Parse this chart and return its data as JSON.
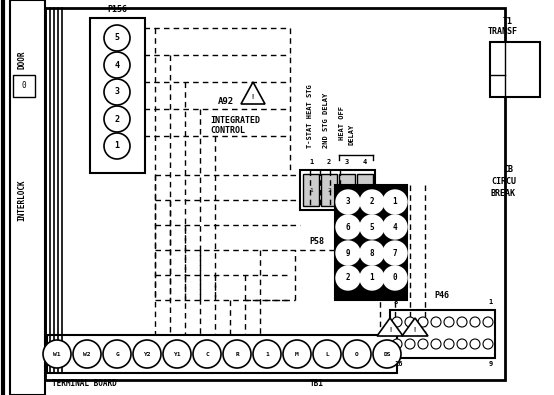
{
  "bg_color": "#ffffff",
  "line_color": "#000000",
  "p156_label": "P156",
  "p156_pins": [
    "5",
    "4",
    "3",
    "2",
    "1"
  ],
  "a92_label": "A92",
  "a92_sub": "INTEGRATED\nCONTROL",
  "tstat_label": "T-STAT HEAT STG",
  "second_stg_label": "2ND STG DELAY",
  "heat_off_label": "HEAT OFF",
  "delay_label": "DELAY",
  "p58_label": "P58",
  "p58_pins": [
    [
      "3",
      "2",
      "1"
    ],
    [
      "6",
      "5",
      "4"
    ],
    [
      "9",
      "8",
      "7"
    ],
    [
      "2",
      "1",
      "0"
    ]
  ],
  "p46_label": "P46",
  "terminal_labels": [
    "W1",
    "W2",
    "G",
    "Y2",
    "Y1",
    "C",
    "R",
    "1",
    "M",
    "L",
    "O",
    "DS"
  ],
  "tb1_label": "TB1",
  "terminal_board_label": "TERMINAL BOARD",
  "t1_label": "T1",
  "transf_label": "TRANSF",
  "cb_label": "CB",
  "circu_label": "CIRCU",
  "break_label": "BREAK",
  "interlock_label": "INTERLOCK",
  "door_label": "DOOR"
}
